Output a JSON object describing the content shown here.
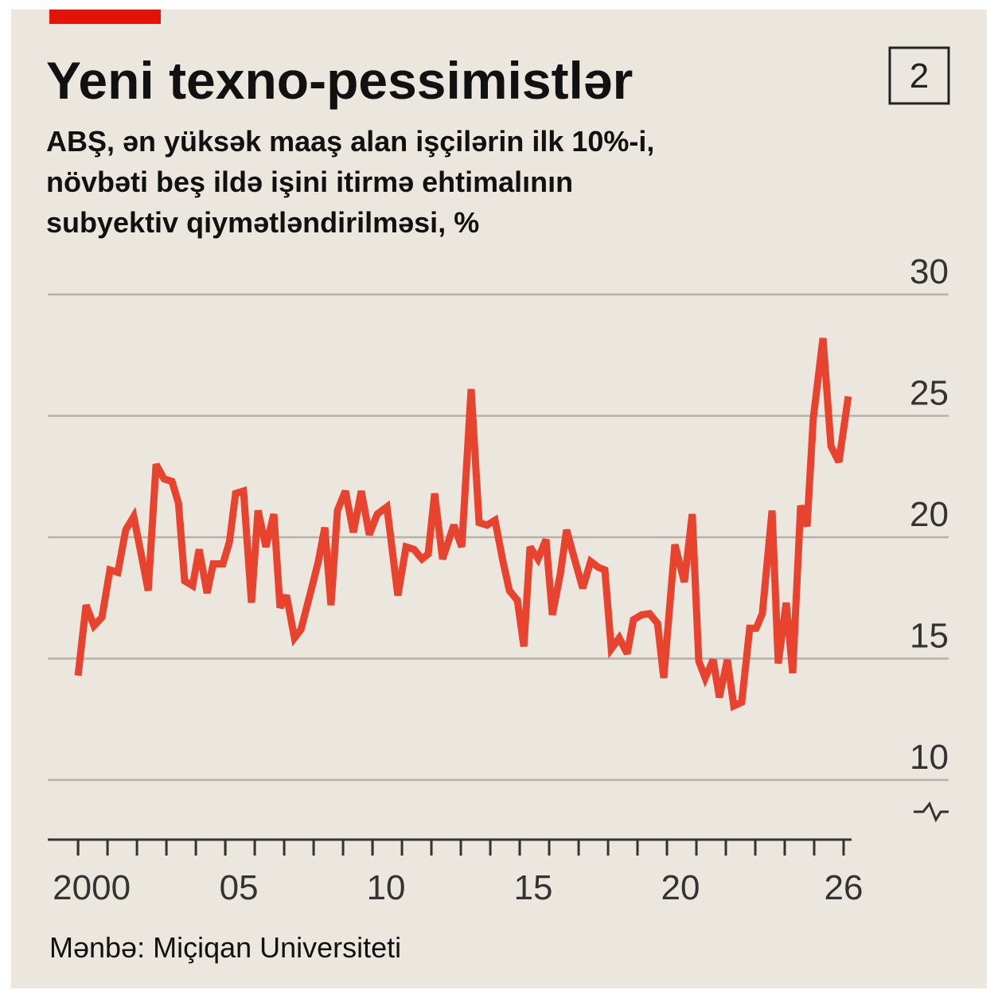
{
  "chart_data": {
    "type": "line",
    "title": "Yeni texno-pessimistlər",
    "badge": "2",
    "subtitle": [
      "ABŞ, ən yüksək maaş alan işçilərin ilk 10%-i,",
      "növbəti beş ildə işini itirmə ehtimalının",
      "subyektiv qiymətləndirilməsi, %"
    ],
    "source": "Mənbə: Miçiqan Universiteti",
    "color": "#e8432e",
    "grid": true,
    "x": [
      2000.0,
      2000.27,
      2000.54,
      2000.81,
      2001.08,
      2001.35,
      2001.62,
      2001.89,
      2002.11,
      2002.38,
      2002.65,
      2002.92,
      2003.19,
      2003.41,
      2003.62,
      2003.89,
      2004.11,
      2004.38,
      2004.59,
      2004.92,
      2005.14,
      2005.35,
      2005.62,
      2005.89,
      2006.11,
      2006.38,
      2006.65,
      2006.86,
      2007.08,
      2007.35,
      2007.57,
      2007.89,
      2008.16,
      2008.38,
      2008.59,
      2008.81,
      2009.08,
      2009.35,
      2009.62,
      2009.89,
      2010.16,
      2010.49,
      2010.86,
      2011.14,
      2011.41,
      2011.68,
      2011.89,
      2012.11,
      2012.38,
      2012.76,
      2013.03,
      2013.35,
      2013.62,
      2013.89,
      2014.16,
      2014.43,
      2014.65,
      2014.92,
      2015.14,
      2015.35,
      2015.62,
      2015.89,
      2016.11,
      2016.38,
      2016.59,
      2016.86,
      2017.14,
      2017.41,
      2017.68,
      2017.89,
      2018.11,
      2018.38,
      2018.65,
      2018.86,
      2019.14,
      2019.41,
      2019.68,
      2019.89,
      2020.27,
      2020.59,
      2020.86,
      2021.08,
      2021.3,
      2021.57,
      2021.78,
      2022.05,
      2022.27,
      2022.54,
      2022.81,
      2023.03,
      2023.24,
      2023.57,
      2023.78,
      2024.05,
      2024.27,
      2024.54,
      2024.76,
      2024.97,
      2025.3,
      2025.57,
      2025.84,
      2026.16
    ],
    "values": [
      14.3,
      17.2,
      16.35,
      16.7,
      18.65,
      18.55,
      20.3,
      20.85,
      19.5,
      17.8,
      23.0,
      22.4,
      22.3,
      21.4,
      18.2,
      18.0,
      19.5,
      17.7,
      18.9,
      18.9,
      19.8,
      21.8,
      21.9,
      17.3,
      21.1,
      19.6,
      20.95,
      17.1,
      17.6,
      15.85,
      16.2,
      17.7,
      19.0,
      20.4,
      17.2,
      21.1,
      21.9,
      20.2,
      21.9,
      20.1,
      20.95,
      21.25,
      17.6,
      19.6,
      19.5,
      19.1,
      19.3,
      21.8,
      19.1,
      20.5,
      19.6,
      26.1,
      20.6,
      20.5,
      20.7,
      19.0,
      17.8,
      17.4,
      15.5,
      19.6,
      19.1,
      19.9,
      16.8,
      18.5,
      20.3,
      19.1,
      17.9,
      19.0,
      18.75,
      18.65,
      15.4,
      15.85,
      15.2,
      16.6,
      16.8,
      16.85,
      16.45,
      14.2,
      19.7,
      18.15,
      20.95,
      14.9,
      14.2,
      14.95,
      13.4,
      14.95,
      13.05,
      13.2,
      16.25,
      16.25,
      16.85,
      21.1,
      14.8,
      17.3,
      14.4,
      21.3,
      20.45,
      24.9,
      28.2,
      23.75,
      23.1,
      25.8
    ],
    "xlim": [
      1998.97,
      2026.27
    ],
    "xticks": [
      2000,
      {
        "value": 2005,
        "label": "05"
      },
      {
        "value": 2010,
        "label": "10"
      },
      {
        "value": 2015,
        "label": "15"
      },
      {
        "value": 2020,
        "label": "20"
      },
      {
        "value": 2026,
        "label": "26"
      }
    ],
    "ylim": [
      10,
      30
    ],
    "yticks": [
      10,
      15,
      20,
      25,
      30
    ]
  }
}
